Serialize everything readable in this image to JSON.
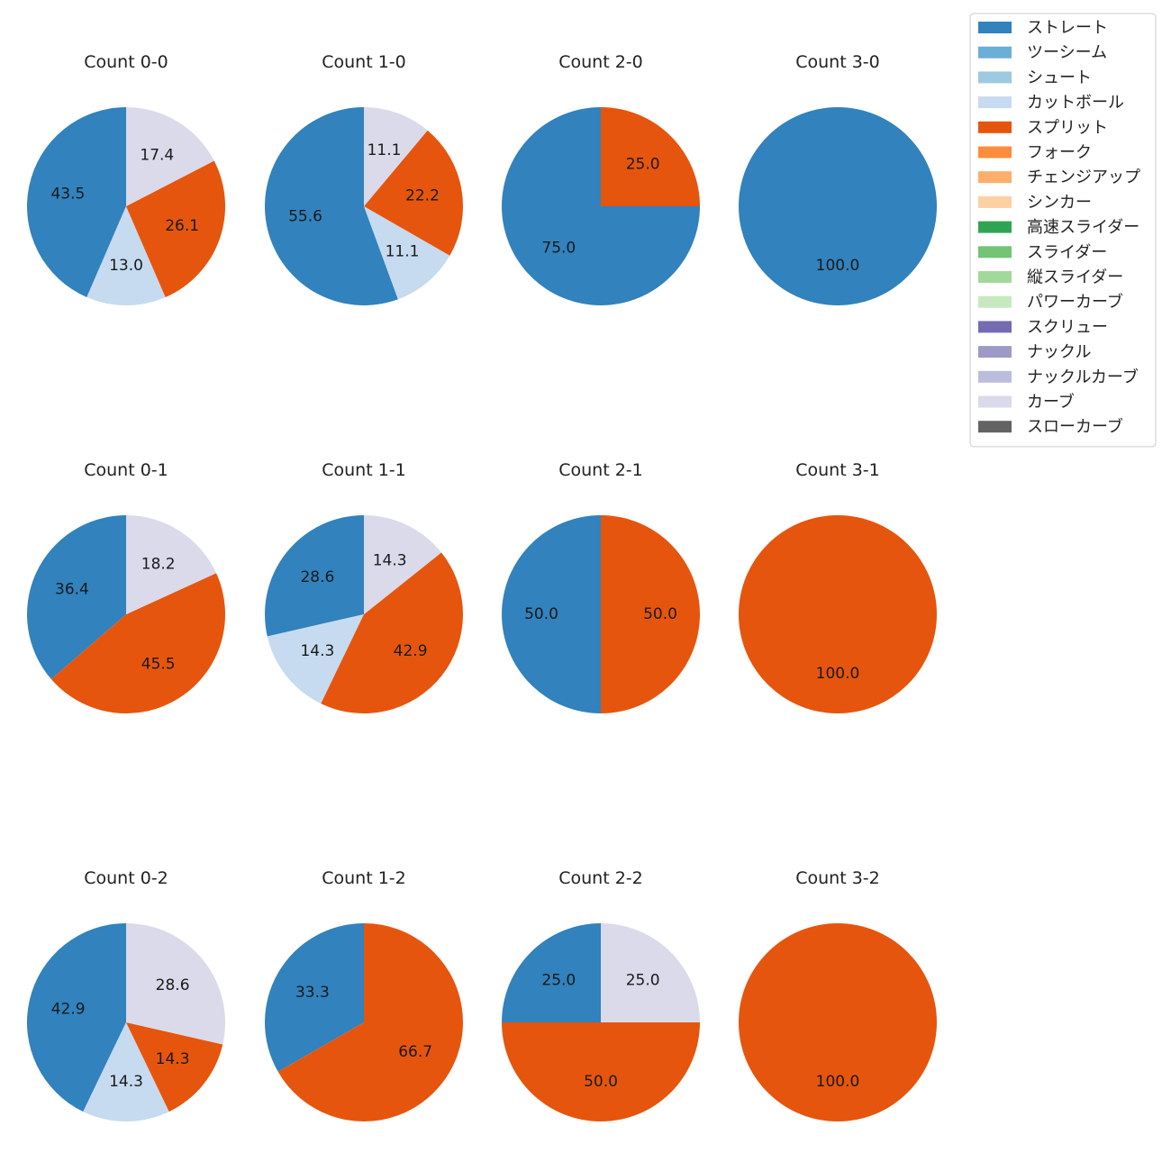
{
  "chart_data": {
    "type": "pie",
    "legend": {
      "placement": "top-right",
      "entries": [
        {
          "name": "ストレート",
          "color": "#3182bd"
        },
        {
          "name": "ツーシーム",
          "color": "#6baed6"
        },
        {
          "name": "シュート",
          "color": "#9ecae1"
        },
        {
          "name": "カットボール",
          "color": "#c6dbef"
        },
        {
          "name": "スプリット",
          "color": "#e6550d"
        },
        {
          "name": "フォーク",
          "color": "#fd8d3c"
        },
        {
          "name": "チェンジアップ",
          "color": "#fdae6b"
        },
        {
          "name": "シンカー",
          "color": "#fdd0a2"
        },
        {
          "name": "高速スライダー",
          "color": "#31a354"
        },
        {
          "name": "スライダー",
          "color": "#74c476"
        },
        {
          "name": "縦スライダー",
          "color": "#a1d99b"
        },
        {
          "name": "パワーカーブ",
          "color": "#c7e9c0"
        },
        {
          "name": "スクリュー",
          "color": "#756bb1"
        },
        {
          "name": "ナックル",
          "color": "#9e9ac8"
        },
        {
          "name": "ナックルカーブ",
          "color": "#bcbddc"
        },
        {
          "name": "カーブ",
          "color": "#dadaeb"
        },
        {
          "name": "スローカーブ",
          "color": "#636363"
        }
      ]
    },
    "charts": [
      {
        "title": "Count 0-0",
        "slices": [
          {
            "pitch": "ストレート",
            "value": 43.5,
            "label": "43.5"
          },
          {
            "pitch": "カットボール",
            "value": 13.0,
            "label": "13.0"
          },
          {
            "pitch": "スプリット",
            "value": 26.1,
            "label": "26.1"
          },
          {
            "pitch": "カーブ",
            "value": 17.4,
            "label": "17.4"
          }
        ]
      },
      {
        "title": "Count 1-0",
        "slices": [
          {
            "pitch": "ストレート",
            "value": 55.6,
            "label": "55.6"
          },
          {
            "pitch": "カットボール",
            "value": 11.1,
            "label": "11.1"
          },
          {
            "pitch": "スプリット",
            "value": 22.2,
            "label": "22.2"
          },
          {
            "pitch": "カーブ",
            "value": 11.1,
            "label": "11.1"
          }
        ]
      },
      {
        "title": "Count 2-0",
        "slices": [
          {
            "pitch": "ストレート",
            "value": 75.0,
            "label": "75.0"
          },
          {
            "pitch": "スプリット",
            "value": 25.0,
            "label": "25.0"
          }
        ]
      },
      {
        "title": "Count 3-0",
        "slices": [
          {
            "pitch": "ストレート",
            "value": 100.0,
            "label": "100.0"
          }
        ]
      },
      {
        "title": "Count 0-1",
        "slices": [
          {
            "pitch": "ストレート",
            "value": 36.4,
            "label": "36.4"
          },
          {
            "pitch": "スプリット",
            "value": 45.5,
            "label": "45.5"
          },
          {
            "pitch": "カーブ",
            "value": 18.2,
            "label": "18.2"
          }
        ]
      },
      {
        "title": "Count 1-1",
        "slices": [
          {
            "pitch": "ストレート",
            "value": 28.6,
            "label": "28.6"
          },
          {
            "pitch": "カットボール",
            "value": 14.3,
            "label": "14.3"
          },
          {
            "pitch": "スプリット",
            "value": 42.9,
            "label": "42.9"
          },
          {
            "pitch": "カーブ",
            "value": 14.3,
            "label": "14.3"
          }
        ]
      },
      {
        "title": "Count 2-1",
        "slices": [
          {
            "pitch": "ストレート",
            "value": 50.0,
            "label": "50.0"
          },
          {
            "pitch": "スプリット",
            "value": 50.0,
            "label": "50.0"
          }
        ]
      },
      {
        "title": "Count 3-1",
        "slices": [
          {
            "pitch": "スプリット",
            "value": 100.0,
            "label": "100.0"
          }
        ]
      },
      {
        "title": "Count 0-2",
        "slices": [
          {
            "pitch": "ストレート",
            "value": 42.9,
            "label": "42.9"
          },
          {
            "pitch": "カットボール",
            "value": 14.3,
            "label": "14.3"
          },
          {
            "pitch": "スプリット",
            "value": 14.3,
            "label": "14.3"
          },
          {
            "pitch": "カーブ",
            "value": 28.6,
            "label": "28.6"
          }
        ]
      },
      {
        "title": "Count 1-2",
        "slices": [
          {
            "pitch": "ストレート",
            "value": 33.3,
            "label": "33.3"
          },
          {
            "pitch": "スプリット",
            "value": 66.7,
            "label": "66.7"
          }
        ]
      },
      {
        "title": "Count 2-2",
        "slices": [
          {
            "pitch": "ストレート",
            "value": 25.0,
            "label": "25.0"
          },
          {
            "pitch": "スプリット",
            "value": 50.0,
            "label": "50.0"
          },
          {
            "pitch": "カーブ",
            "value": 25.0,
            "label": "25.0"
          }
        ]
      },
      {
        "title": "Count 3-2",
        "slices": [
          {
            "pitch": "スプリット",
            "value": 100.0,
            "label": "100.0"
          }
        ]
      }
    ]
  }
}
